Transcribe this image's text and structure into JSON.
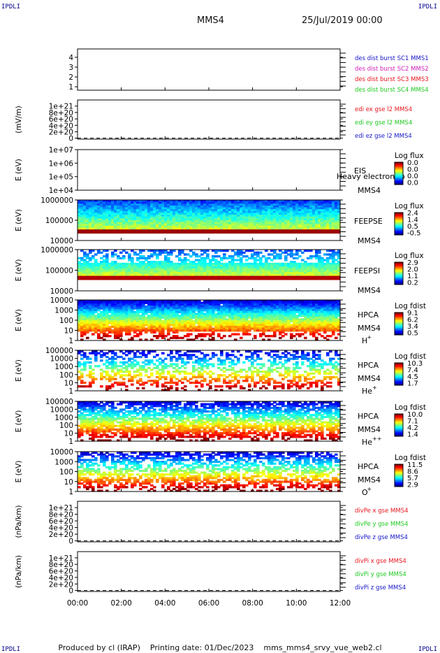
{
  "corners": {
    "tl": "IPDLI",
    "tr": "IPDLI",
    "bl": "IPDLI",
    "br": "IPDLI"
  },
  "header": {
    "spacecraft": "MMS4",
    "date": "25/Jul/2019 00:00"
  },
  "footer": {
    "produced": "Produced by cl (IRAP)",
    "printing": "Printing date: 01/Dec/2023",
    "file": "mms_mms4_srvy_vue_web2.cl"
  },
  "colors": {
    "red": "#e8141c",
    "green": "#1ec81e",
    "blue": "#1414c8",
    "magenta": "#d21eb4"
  },
  "chart_data": [
    {
      "type": "line",
      "ylabel": "",
      "yticks": [
        "1",
        "2",
        "3",
        "4"
      ],
      "ylim": [
        0.8,
        4.4
      ],
      "legend": [
        {
          "text": "des dist burst SC1 MMS1",
          "color": "#1414c8"
        },
        {
          "text": "des dist burst SC2 MMS2",
          "color": "#d21eb4"
        },
        {
          "text": "des dist burst SC3 MMS3",
          "color": "#e8141c"
        },
        {
          "text": "des dist burst SC4 MMS4",
          "color": "#1ec81e"
        }
      ],
      "series": []
    },
    {
      "type": "line",
      "ylabel": "(mV/m)",
      "yticks": [
        "0",
        "2e+20",
        "4e+20",
        "6e+20",
        "8e+20",
        "1e+21"
      ],
      "ylim": [
        -2e+20,
        1.05e+21
      ],
      "zero_line": true,
      "legend": [
        {
          "text": "edi ex gse l2 MMS4",
          "color": "#e8141c"
        },
        {
          "text": "edi ey gse l2 MMS4",
          "color": "#1ec81e"
        },
        {
          "text": "edi ez gse l2 MMS4",
          "color": "#1414c8"
        }
      ],
      "series": []
    },
    {
      "type": "heatmap",
      "ylabel": "E (eV)",
      "yticks": [
        "1e+04",
        "1e+05",
        "1e+06",
        "1e+07"
      ],
      "instrument": "EIS",
      "overlay": "Heavy electron to",
      "spacecraft": "MMS4",
      "colorbar": {
        "title": "Log flux",
        "ticks": [
          "0.0",
          "0.0",
          "0.0",
          "0.0"
        ]
      },
      "data": "none"
    },
    {
      "type": "heatmap",
      "ylabel": "E (eV)",
      "yticks": [
        "10000",
        "100000",
        "1000000"
      ],
      "instrument": "FEEPSE",
      "spacecraft": "MMS4",
      "colorbar": {
        "title": "Log flux",
        "ticks": [
          "2.4",
          "1.4",
          "0.5",
          "-0.5"
        ]
      }
    },
    {
      "type": "heatmap",
      "ylabel": "E (eV)",
      "yticks": [
        "10000",
        "100000",
        "1000000"
      ],
      "instrument": "FEEPSI",
      "spacecraft": "MMS4",
      "colorbar": {
        "title": "Log flux",
        "ticks": [
          "2.9",
          "2.0",
          "1.1",
          "0.2"
        ]
      }
    },
    {
      "type": "heatmap",
      "ylabel": "E (eV)",
      "yticks": [
        "1",
        "10",
        "100",
        "1000",
        "10000"
      ],
      "instrument": "HPCA",
      "spacecraft": "MMS4",
      "species": "H",
      "species_sup": "+",
      "colorbar": {
        "title": "Log fdist",
        "ticks": [
          "9.1",
          "6.2",
          "3.4",
          "0.5"
        ]
      }
    },
    {
      "type": "heatmap",
      "ylabel": "E (eV)",
      "yticks": [
        "1",
        "10",
        "100",
        "1000",
        "10000",
        "100000"
      ],
      "instrument": "HPCA",
      "spacecraft": "MMS4",
      "species": "He",
      "species_sup": "+",
      "colorbar": {
        "title": "Log fdist",
        "ticks": [
          "10.3",
          "7.4",
          "4.5",
          "1.7"
        ]
      }
    },
    {
      "type": "heatmap",
      "ylabel": "E (eV)",
      "yticks": [
        "1",
        "10",
        "100",
        "1000",
        "10000",
        "100000"
      ],
      "instrument": "HPCA",
      "spacecraft": "MMS4",
      "species": "He",
      "species_sup": "++",
      "colorbar": {
        "title": "Log fdist",
        "ticks": [
          "10.0",
          "7.1",
          "4.2",
          "1.4"
        ]
      }
    },
    {
      "type": "heatmap",
      "ylabel": "E (eV)",
      "yticks": [
        "1",
        "10",
        "100",
        "1000",
        "10000"
      ],
      "instrument": "HPCA",
      "spacecraft": "MMS4",
      "species": "O",
      "species_sup": "+",
      "colorbar": {
        "title": "Log fdist",
        "ticks": [
          "11.5",
          "8.6",
          "5.7",
          "2.9"
        ]
      }
    },
    {
      "type": "line",
      "ylabel": "(nPa/km)",
      "yticks": [
        "0",
        "2e+20",
        "4e+20",
        "6e+20",
        "8e+20",
        "1e+21"
      ],
      "ylim": [
        -2e+20,
        1.05e+21
      ],
      "zero_line": true,
      "legend": [
        {
          "text": "divPe x gse MMS4",
          "color": "#e8141c"
        },
        {
          "text": "divPe y gse MMS4",
          "color": "#1ec81e"
        },
        {
          "text": "divPe z gse MMS4",
          "color": "#1414c8"
        }
      ],
      "series": []
    },
    {
      "type": "line",
      "ylabel": "(nPa/km)",
      "yticks": [
        "0",
        "2e+20",
        "4e+20",
        "6e+20",
        "8e+20",
        "1e+21"
      ],
      "ylim": [
        -2e+20,
        1.05e+21
      ],
      "zero_line": true,
      "legend": [
        {
          "text": "divPi x gse MMS4",
          "color": "#e8141c"
        },
        {
          "text": "divPi y gse MMS4",
          "color": "#1ec81e"
        },
        {
          "text": "divPi z gse MMS4",
          "color": "#1414c8"
        }
      ],
      "series": []
    }
  ],
  "xaxis": {
    "ticks": [
      "00:00",
      "02:00",
      "04:00",
      "06:00",
      "08:00",
      "10:00",
      "12:00"
    ],
    "range_hours": [
      0,
      12
    ]
  }
}
